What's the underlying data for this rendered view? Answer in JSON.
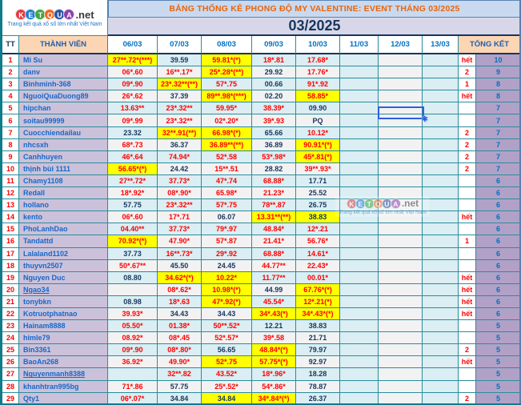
{
  "logo": {
    "letters": [
      {
        "ch": "K",
        "color": "#e03a3f"
      },
      {
        "ch": "E",
        "color": "#1f7fd4"
      },
      {
        "ch": "T",
        "color": "#3fa743"
      },
      {
        "ch": "Q",
        "color": "#f26522"
      },
      {
        "ch": "U",
        "color": "#2a52a0"
      },
      {
        "ch": "A",
        "color": "#8c3fae"
      }
    ],
    "suffix": ".net",
    "tagline": "Trang kết quả xổ số lớn nhất Việt Nam"
  },
  "header": {
    "title": "BẢNG THỐNG KÊ PHONG ĐỘ MY VALENTINE: EVENT THÁNG 03/2025",
    "month": "03/2025"
  },
  "columns": [
    "TT",
    "THÀNH VIÊN",
    "06/03",
    "07/03",
    "08/03",
    "09/03",
    "10/03",
    "11/03",
    "12/03",
    "13/03",
    "TỔNG KẾT"
  ],
  "selection": {
    "row": 5,
    "column": "12/03"
  },
  "colors": {
    "highlight_yellow": "#ffff00",
    "value_red": "#fe0000",
    "value_navy": "#17365d",
    "grid_teal": "#2b8c9c",
    "name_bg_purple": "#ccc1da",
    "total_bg_purple": "#b2a1c7",
    "header_peach": "#fcd5b4",
    "title_orange": "#e8650d",
    "title_bg_blue": "#c9d9ef",
    "month_bg_lavender": "#d8d7e9",
    "row_blue": "#daeef3",
    "row_gray": "#f2f2f2",
    "member_link_blue": "#1668c9"
  },
  "rows": [
    {
      "tt": "1",
      "name": "Mi Su",
      "cells": [
        {
          "v": "27**.72*(***)",
          "y": 1,
          "c": "r"
        },
        {
          "v": "39.59",
          "c": "n"
        },
        {
          "v": "59.81*(*)",
          "y": 1,
          "c": "r"
        },
        {
          "v": "18*.81",
          "c": "r"
        },
        {
          "v": "17.68*",
          "c": "r"
        }
      ],
      "note": "hết",
      "total": "10"
    },
    {
      "tt": "2",
      "name": "danv",
      "cells": [
        {
          "v": "06*.60",
          "c": "r"
        },
        {
          "v": "16**.17*",
          "c": "r"
        },
        {
          "v": "25*.28*(**)",
          "y": 1,
          "c": "r"
        },
        {
          "v": "29.92",
          "c": "n"
        },
        {
          "v": "17.76*",
          "c": "r"
        }
      ],
      "note": "2",
      "total": "9"
    },
    {
      "tt": "3",
      "name": "Binhminh-368",
      "cells": [
        {
          "v": "09*.90",
          "c": "r"
        },
        {
          "v": "23*.32**(**)",
          "y": 1,
          "c": "r"
        },
        {
          "v": "57*.75",
          "c": "r"
        },
        {
          "v": "00.66",
          "c": "n"
        },
        {
          "v": "91*.92",
          "c": "r"
        }
      ],
      "note": "1",
      "total": "8"
    },
    {
      "tt": "4",
      "name": "NguoiQuaDuong89",
      "cells": [
        {
          "v": "26*.62",
          "c": "r"
        },
        {
          "v": "37.39",
          "c": "n"
        },
        {
          "v": "89**.98*(***)",
          "y": 1,
          "c": "r"
        },
        {
          "v": "02.20",
          "c": "n"
        },
        {
          "v": "58.85*",
          "y": 1,
          "c": "r"
        }
      ],
      "note": "hết",
      "total": "8"
    },
    {
      "tt": "5",
      "name": "hipchan",
      "cells": [
        {
          "v": "13.63**",
          "c": "r"
        },
        {
          "v": "23*.32**",
          "c": "r"
        },
        {
          "v": "59.95*",
          "c": "r"
        },
        {
          "v": "38.39*",
          "c": "r"
        },
        {
          "v": "09.90",
          "c": "n"
        }
      ],
      "note": "",
      "total": "7"
    },
    {
      "tt": "6",
      "name": "soitau99999",
      "cells": [
        {
          "v": "09*.99",
          "c": "r"
        },
        {
          "v": "23*.32**",
          "c": "r"
        },
        {
          "v": "02*.20*",
          "c": "r"
        },
        {
          "v": "39*.93",
          "c": "r"
        },
        {
          "v": "PQ",
          "c": "n"
        }
      ],
      "note": "",
      "total": "7"
    },
    {
      "tt": "7",
      "name": "Cuocchiendailau",
      "cells": [
        {
          "v": "23.32",
          "c": "n"
        },
        {
          "v": "32**.91(**)",
          "y": 1,
          "c": "r"
        },
        {
          "v": "66.98*(*)",
          "y": 1,
          "c": "r"
        },
        {
          "v": "65.66",
          "c": "n"
        },
        {
          "v": "10.12*",
          "c": "r"
        }
      ],
      "note": "2",
      "total": "7"
    },
    {
      "tt": "8",
      "name": "nhcsxh",
      "cells": [
        {
          "v": "68*.73",
          "c": "r"
        },
        {
          "v": "36.37",
          "c": "n"
        },
        {
          "v": "36.89**(**)",
          "y": 1,
          "c": "r"
        },
        {
          "v": "36.89",
          "c": "n"
        },
        {
          "v": "90.91*(*)",
          "y": 1,
          "c": "r"
        }
      ],
      "note": "2",
      "total": "7"
    },
    {
      "tt": "9",
      "name": "Canhhuyen",
      "cells": [
        {
          "v": "46*.64",
          "c": "r"
        },
        {
          "v": "74.94*",
          "c": "r"
        },
        {
          "v": "52*.58",
          "c": "r"
        },
        {
          "v": "53*.98*",
          "c": "r"
        },
        {
          "v": "45*.81(*)",
          "y": 1,
          "c": "r"
        }
      ],
      "note": "2",
      "total": "7"
    },
    {
      "tt": "10",
      "name": "thịnh bùi 1111",
      "cells": [
        {
          "v": "56.65*(*)",
          "y": 1,
          "c": "r"
        },
        {
          "v": "24.42",
          "c": "n"
        },
        {
          "v": "15**.51",
          "c": "r"
        },
        {
          "v": "28.82",
          "c": "n"
        },
        {
          "v": "39**.93*",
          "c": "r"
        }
      ],
      "note": "2",
      "total": "7"
    },
    {
      "tt": "11",
      "name": "Chamy1108",
      "cells": [
        {
          "v": "27**.72*",
          "c": "r"
        },
        {
          "v": "37.73*",
          "c": "r"
        },
        {
          "v": "47*.74",
          "c": "r"
        },
        {
          "v": "68.88*",
          "c": "r"
        },
        {
          "v": "17.71",
          "c": "n"
        }
      ],
      "note": "",
      "total": "6"
    },
    {
      "tt": "12",
      "name": "Redall",
      "cells": [
        {
          "v": "18*.92*",
          "c": "r"
        },
        {
          "v": "08*.90*",
          "c": "r"
        },
        {
          "v": "65.98*",
          "c": "r"
        },
        {
          "v": "21.23*",
          "c": "r"
        },
        {
          "v": "25.52",
          "c": "n"
        }
      ],
      "note": "",
      "total": "6"
    },
    {
      "tt": "13",
      "name": "hollano",
      "cells": [
        {
          "v": "57.75",
          "c": "n"
        },
        {
          "v": "23*.32**",
          "c": "r"
        },
        {
          "v": "57*.75",
          "c": "r"
        },
        {
          "v": "78**.87",
          "c": "r"
        },
        {
          "v": "26.75",
          "c": "n"
        }
      ],
      "note": "",
      "total": "6"
    },
    {
      "tt": "14",
      "name": "kento",
      "cells": [
        {
          "v": "06*.60",
          "c": "r"
        },
        {
          "v": "17*.71",
          "c": "r"
        },
        {
          "v": "06.07",
          "c": "n"
        },
        {
          "v": "13.31**(**)",
          "y": 1,
          "c": "r"
        },
        {
          "v": "38.83",
          "y": 1,
          "c": "n"
        }
      ],
      "note": "hết",
      "total": "6"
    },
    {
      "tt": "15",
      "name": "PhoLanhDao",
      "cells": [
        {
          "v": "04.40**",
          "c": "r"
        },
        {
          "v": "37.73*",
          "c": "r"
        },
        {
          "v": "79*.97",
          "c": "r"
        },
        {
          "v": "48.84*",
          "c": "r"
        },
        {
          "v": "12*.21",
          "c": "r"
        }
      ],
      "note": "",
      "total": "6"
    },
    {
      "tt": "16",
      "name": "Tandattd",
      "cells": [
        {
          "v": "70.92*(*)",
          "y": 1,
          "c": "r"
        },
        {
          "v": "47.90*",
          "c": "r"
        },
        {
          "v": "57*.87",
          "c": "r"
        },
        {
          "v": "21.41*",
          "c": "r"
        },
        {
          "v": "56.76*",
          "c": "r"
        }
      ],
      "note": "1",
      "total": "6"
    },
    {
      "tt": "17",
      "name": "Lalaland1102",
      "cells": [
        {
          "v": "37.73",
          "c": "n"
        },
        {
          "v": "16**.73*",
          "c": "r"
        },
        {
          "v": "29*.92",
          "c": "r"
        },
        {
          "v": "68.88*",
          "c": "r"
        },
        {
          "v": "14.61*",
          "c": "r"
        }
      ],
      "note": "",
      "total": "6"
    },
    {
      "tt": "18",
      "name": "thuyvn2507",
      "cells": [
        {
          "v": "50*.67**",
          "c": "r"
        },
        {
          "v": "45.50",
          "c": "n"
        },
        {
          "v": "24.45",
          "c": "n"
        },
        {
          "v": "44.77**",
          "c": "r"
        },
        {
          "v": "22.43*",
          "c": "r"
        }
      ],
      "note": "",
      "total": "6"
    },
    {
      "tt": "19",
      "name": "Nguyen Duc",
      "cells": [
        {
          "v": "08.80",
          "c": "n"
        },
        {
          "v": "34.62*(*)",
          "y": 1,
          "c": "r"
        },
        {
          "v": "10.22*",
          "y": 1,
          "c": "r"
        },
        {
          "v": "11.77**",
          "c": "r"
        },
        {
          "v": "00.01*",
          "c": "r"
        }
      ],
      "note": "hết",
      "total": "6"
    },
    {
      "tt": "20",
      "name": "Ngao34",
      "u": 1,
      "cells": [
        {
          "v": ""
        },
        {
          "v": "08*.62*",
          "c": "r"
        },
        {
          "v": "10.98*(*)",
          "y": 1,
          "c": "r"
        },
        {
          "v": "44.99",
          "c": "n"
        },
        {
          "v": "67.76*(*)",
          "y": 1,
          "c": "r"
        }
      ],
      "note": "hết",
      "total": "6"
    },
    {
      "tt": "21",
      "name": "tonybkn",
      "cells": [
        {
          "v": "08.98",
          "c": "n"
        },
        {
          "v": "18*.63",
          "c": "r"
        },
        {
          "v": "47*.92(*)",
          "y": 1,
          "c": "r"
        },
        {
          "v": "45.54*",
          "c": "r"
        },
        {
          "v": "12*.21(*)",
          "y": 1,
          "c": "r"
        }
      ],
      "note": "hết",
      "total": "6"
    },
    {
      "tt": "22",
      "name": "Kotruotphatnao",
      "cells": [
        {
          "v": "39.93*",
          "c": "r"
        },
        {
          "v": "34.43",
          "c": "n"
        },
        {
          "v": "34.43",
          "c": "n"
        },
        {
          "v": "34*.43(*)",
          "y": 1,
          "c": "r"
        },
        {
          "v": "34*.43*(*)",
          "y": 1,
          "c": "r"
        }
      ],
      "note": "hết",
      "total": "6"
    },
    {
      "tt": "23",
      "name": "Hainam8888",
      "cells": [
        {
          "v": "05.50*",
          "c": "r"
        },
        {
          "v": "01.38*",
          "c": "r"
        },
        {
          "v": "50**.52*",
          "c": "r"
        },
        {
          "v": "12.21",
          "c": "n"
        },
        {
          "v": "38.83",
          "c": "n"
        }
      ],
      "note": "",
      "total": "5"
    },
    {
      "tt": "24",
      "name": "himle79",
      "cells": [
        {
          "v": "08.92*",
          "c": "r"
        },
        {
          "v": "08*.45",
          "c": "r"
        },
        {
          "v": "52*.57*",
          "c": "r"
        },
        {
          "v": "39*.58",
          "c": "r"
        },
        {
          "v": "21.71",
          "c": "n"
        }
      ],
      "note": "",
      "total": "5"
    },
    {
      "tt": "25",
      "name": "Bin3361",
      "cells": [
        {
          "v": "09*.90",
          "c": "r"
        },
        {
          "v": "08*.80*",
          "c": "r"
        },
        {
          "v": "56.65",
          "c": "n"
        },
        {
          "v": "48.84*(*)",
          "y": 1,
          "c": "r"
        },
        {
          "v": "79.97",
          "c": "n"
        }
      ],
      "note": "2",
      "total": "5"
    },
    {
      "tt": "26",
      "name": "BaoAn268",
      "cells": [
        {
          "v": "36.92*",
          "c": "r"
        },
        {
          "v": "49.90*",
          "c": "r"
        },
        {
          "v": "52*.75",
          "y": 1,
          "c": "r"
        },
        {
          "v": "57.75*(*)",
          "y": 1,
          "c": "r"
        },
        {
          "v": "92.97",
          "c": "n"
        }
      ],
      "note": "hết",
      "total": "5"
    },
    {
      "tt": "27",
      "name": "Nguyenmanh8388",
      "u": 1,
      "cells": [
        {
          "v": ""
        },
        {
          "v": "32**.82",
          "c": "r"
        },
        {
          "v": "43.52*",
          "c": "r"
        },
        {
          "v": "18*.96*",
          "c": "r"
        },
        {
          "v": "18.28",
          "c": "n"
        }
      ],
      "note": "",
      "total": "5"
    },
    {
      "tt": "28",
      "name": "khanhtran995bg",
      "cells": [
        {
          "v": "71*.86",
          "c": "r"
        },
        {
          "v": "57.75",
          "c": "n"
        },
        {
          "v": "25*.52*",
          "c": "r"
        },
        {
          "v": "54*.86*",
          "c": "r"
        },
        {
          "v": "78.87",
          "c": "n"
        }
      ],
      "note": "",
      "total": "5"
    },
    {
      "tt": "29",
      "name": "Qty1",
      "cells": [
        {
          "v": "06*.07*",
          "c": "r"
        },
        {
          "v": "34.84",
          "c": "n"
        },
        {
          "v": "34.84",
          "y": 1,
          "c": "n"
        },
        {
          "v": "34*.84*(*)",
          "y": 1,
          "c": "r"
        },
        {
          "v": "26.37",
          "c": "n"
        }
      ],
      "note": "2",
      "total": "5"
    }
  ]
}
